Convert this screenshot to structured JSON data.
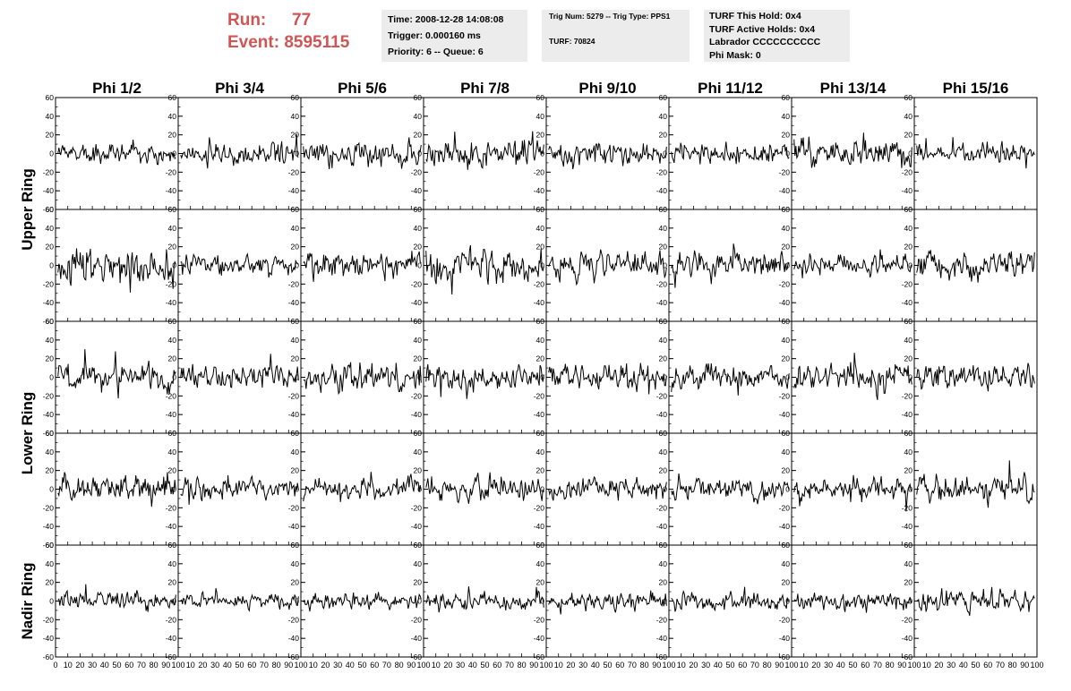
{
  "header": {
    "run_label": "Run:",
    "run_value": "77",
    "event_label": "Event:",
    "event_value": "8595115",
    "time_box": {
      "time": "Time: 2008-12-28 14:08:08",
      "trigger": "Trigger: 0.000160 ms",
      "priority": "Priority: 6 -- Queue: 6"
    },
    "trig_box": {
      "line1": "Trig Num: 5279 -- Trig Type: PPS1",
      "line2": "TURF: 70824"
    },
    "turf_box": {
      "hold": "TURF This Hold: 0x4",
      "active_holds": "TURF Active Holds: 0x4",
      "labrador": "Labrador CCCCCCCCCC",
      "phi_mask": "Phi Mask: 0"
    }
  },
  "chart_data": {
    "type": "line",
    "columns": [
      "Phi 1/2",
      "Phi 3/4",
      "Phi 5/6",
      "Phi 7/8",
      "Phi 9/10",
      "Phi 11/12",
      "Phi 13/14",
      "Phi 15/16"
    ],
    "ring_labels": [
      {
        "label": "Upper Ring",
        "rows": [
          0,
          1
        ]
      },
      {
        "label": "Lower Ring",
        "rows": [
          2,
          3
        ]
      },
      {
        "label": "Nadir Ring",
        "rows": [
          4
        ]
      }
    ],
    "rows": 5,
    "xlim": [
      0,
      100
    ],
    "ylim": [
      -60,
      60
    ],
    "x_ticks": [
      0,
      10,
      20,
      30,
      40,
      50,
      60,
      70,
      80,
      90,
      100
    ],
    "y_ticks": [
      -60,
      -40,
      -20,
      0,
      20,
      40,
      60
    ],
    "samples_per_trace": 128,
    "waveform_amplitude": [
      [
        12,
        12,
        14,
        16,
        14,
        12,
        18,
        12
      ],
      [
        20,
        12,
        16,
        18,
        16,
        14,
        12,
        16
      ],
      [
        16,
        14,
        16,
        14,
        14,
        14,
        16,
        14
      ],
      [
        14,
        12,
        12,
        14,
        12,
        12,
        12,
        14
      ],
      [
        10,
        8,
        10,
        10,
        10,
        10,
        10,
        12
      ]
    ],
    "line_color": "#000000",
    "title_color": "#d05555"
  }
}
